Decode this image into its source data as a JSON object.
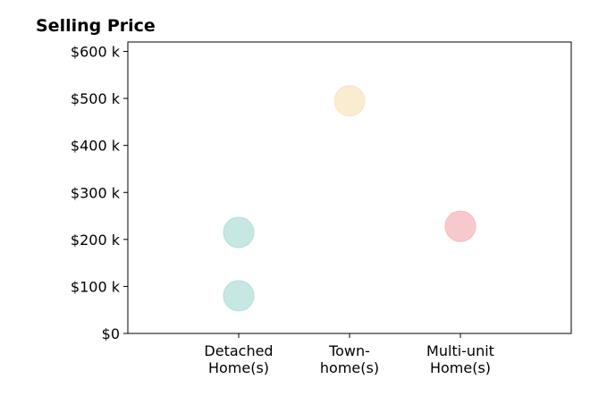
{
  "chart_data": {
    "type": "scatter",
    "title": "Selling Price",
    "xlabel": "",
    "ylabel": "",
    "categories": [
      [
        "Detached",
        "Home(s)"
      ],
      [
        "Town-",
        "home(s)"
      ],
      [
        "Multi-unit",
        "Home(s)"
      ]
    ],
    "y_ticks": [
      {
        "value": 0,
        "label": "$0"
      },
      {
        "value": 100,
        "label": "$100 k"
      },
      {
        "value": 200,
        "label": "$200 k"
      },
      {
        "value": 300,
        "label": "$300 k"
      },
      {
        "value": 400,
        "label": "$400 k"
      },
      {
        "value": 500,
        "label": "$500 k"
      },
      {
        "value": 600,
        "label": "$600 k"
      }
    ],
    "ylim": [
      0,
      620
    ],
    "xlim": [
      -1,
      3
    ],
    "grid": false,
    "points": [
      {
        "category": 0,
        "value": 80,
        "color": "#b3dfd9"
      },
      {
        "category": 0,
        "value": 215,
        "color": "#b3dfd9"
      },
      {
        "category": 1,
        "value": 495,
        "color": "#f7e6c2"
      },
      {
        "category": 2,
        "value": 228,
        "color": "#f6b7bb"
      }
    ]
  }
}
